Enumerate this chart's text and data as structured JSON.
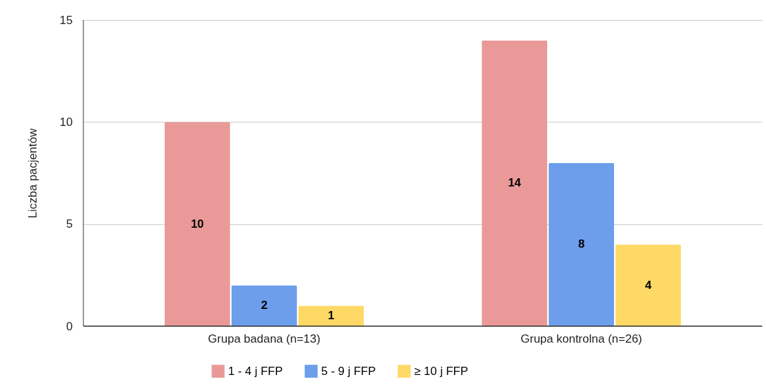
{
  "chart_data": {
    "type": "bar",
    "ylabel": "Liczba pacjentów",
    "categories": [
      "Grupa badana (n=13)",
      "Grupa kontrolna (n=26)"
    ],
    "series": [
      {
        "name": "1 - 4 j FFP",
        "color": "#ea9999",
        "values": [
          10,
          14
        ]
      },
      {
        "name": "5 - 9 j FFP",
        "color": "#6d9eeb",
        "values": [
          2,
          8
        ]
      },
      {
        "name": "≥ 10 j FFP",
        "color": "#ffd966",
        "values": [
          1,
          4
        ]
      }
    ],
    "ylim": [
      0,
      15
    ],
    "yticks": [
      0,
      5,
      10,
      15
    ],
    "grid": "y",
    "legend": "bottom",
    "data_labels": true
  }
}
